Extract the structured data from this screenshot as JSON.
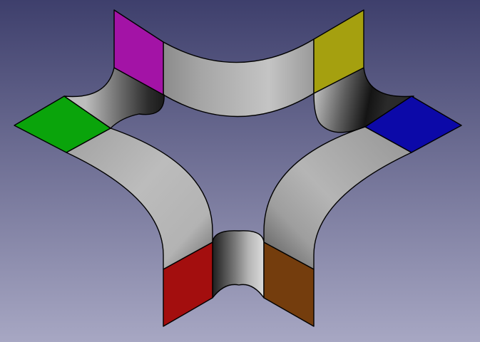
{
  "viewport": {
    "background_top": "#3e3f6c",
    "background_bottom": "#a7a7c3",
    "edge_color": "#000000"
  },
  "model": {
    "shape": "six-pointed star frame",
    "face_colors": {
      "magenta": "#a313a6",
      "yellow": "#a5a00f",
      "blue": "#0c09a8",
      "green": "#0aa40b",
      "red": "#a30e0e",
      "brown": "#743d0d"
    },
    "surface_colors": {
      "light": "#bdbdbd",
      "mid": "#8a8a8a",
      "dark": "#2a2a2a"
    }
  }
}
